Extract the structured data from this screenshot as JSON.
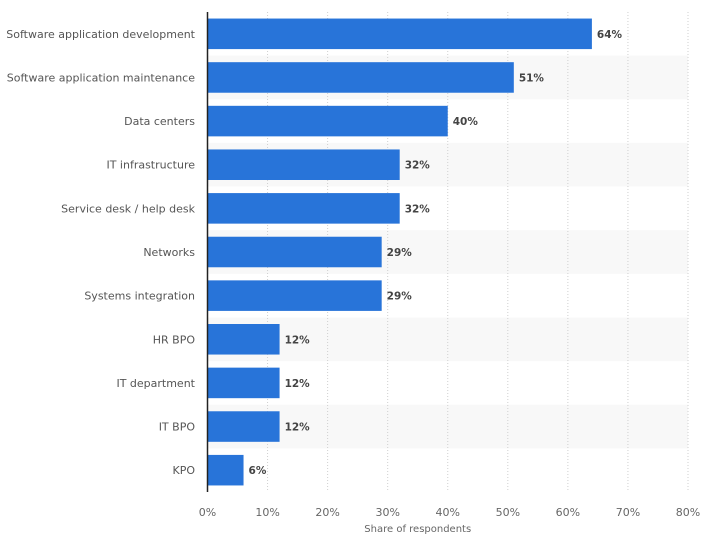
{
  "chart_data": {
    "type": "bar",
    "orientation": "horizontal",
    "title": "",
    "xlabel": "Share of respondents",
    "ylabel": "",
    "xlim": [
      0,
      80
    ],
    "x_ticks": [
      0,
      10,
      20,
      30,
      40,
      50,
      60,
      70,
      80
    ],
    "x_tick_labels": [
      "0%",
      "10%",
      "20%",
      "30%",
      "40%",
      "50%",
      "60%",
      "70%",
      "80%"
    ],
    "grid": true,
    "legend": "none",
    "bar_color": "#2874d9",
    "categories": [
      "Software application development",
      "Software application maintenance",
      "Data centers",
      "IT infrastructure",
      "Service desk / help desk",
      "Networks",
      "Systems integration",
      "HR BPO",
      "IT department",
      "IT BPO",
      "KPO"
    ],
    "values": [
      64,
      51,
      40,
      32,
      32,
      29,
      29,
      12,
      12,
      12,
      6
    ],
    "data_labels": [
      "64%",
      "51%",
      "40%",
      "32%",
      "32%",
      "29%",
      "29%",
      "12%",
      "12%",
      "12%",
      "6%"
    ]
  }
}
